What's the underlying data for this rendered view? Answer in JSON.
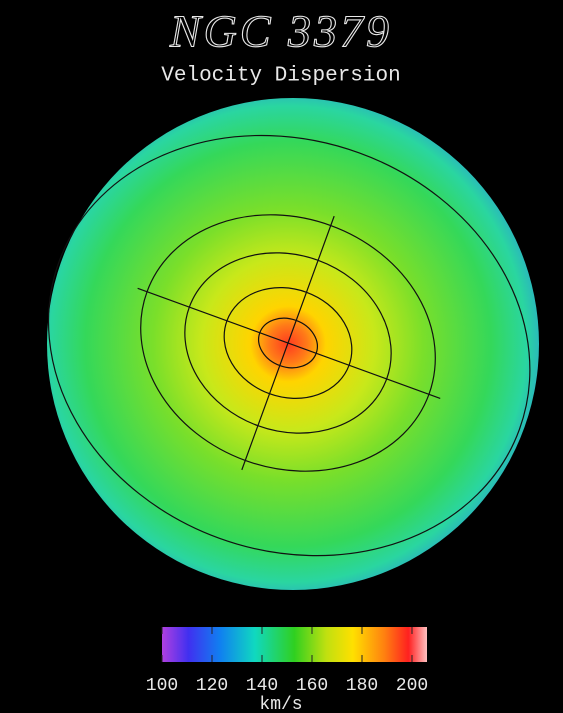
{
  "title": "NGC 3379",
  "subtitle": "Velocity Dispersion",
  "colorbar": {
    "lim": [
      100,
      206
    ],
    "ticks": [
      100,
      120,
      140,
      160,
      180,
      200
    ],
    "label": "km/s"
  }
}
